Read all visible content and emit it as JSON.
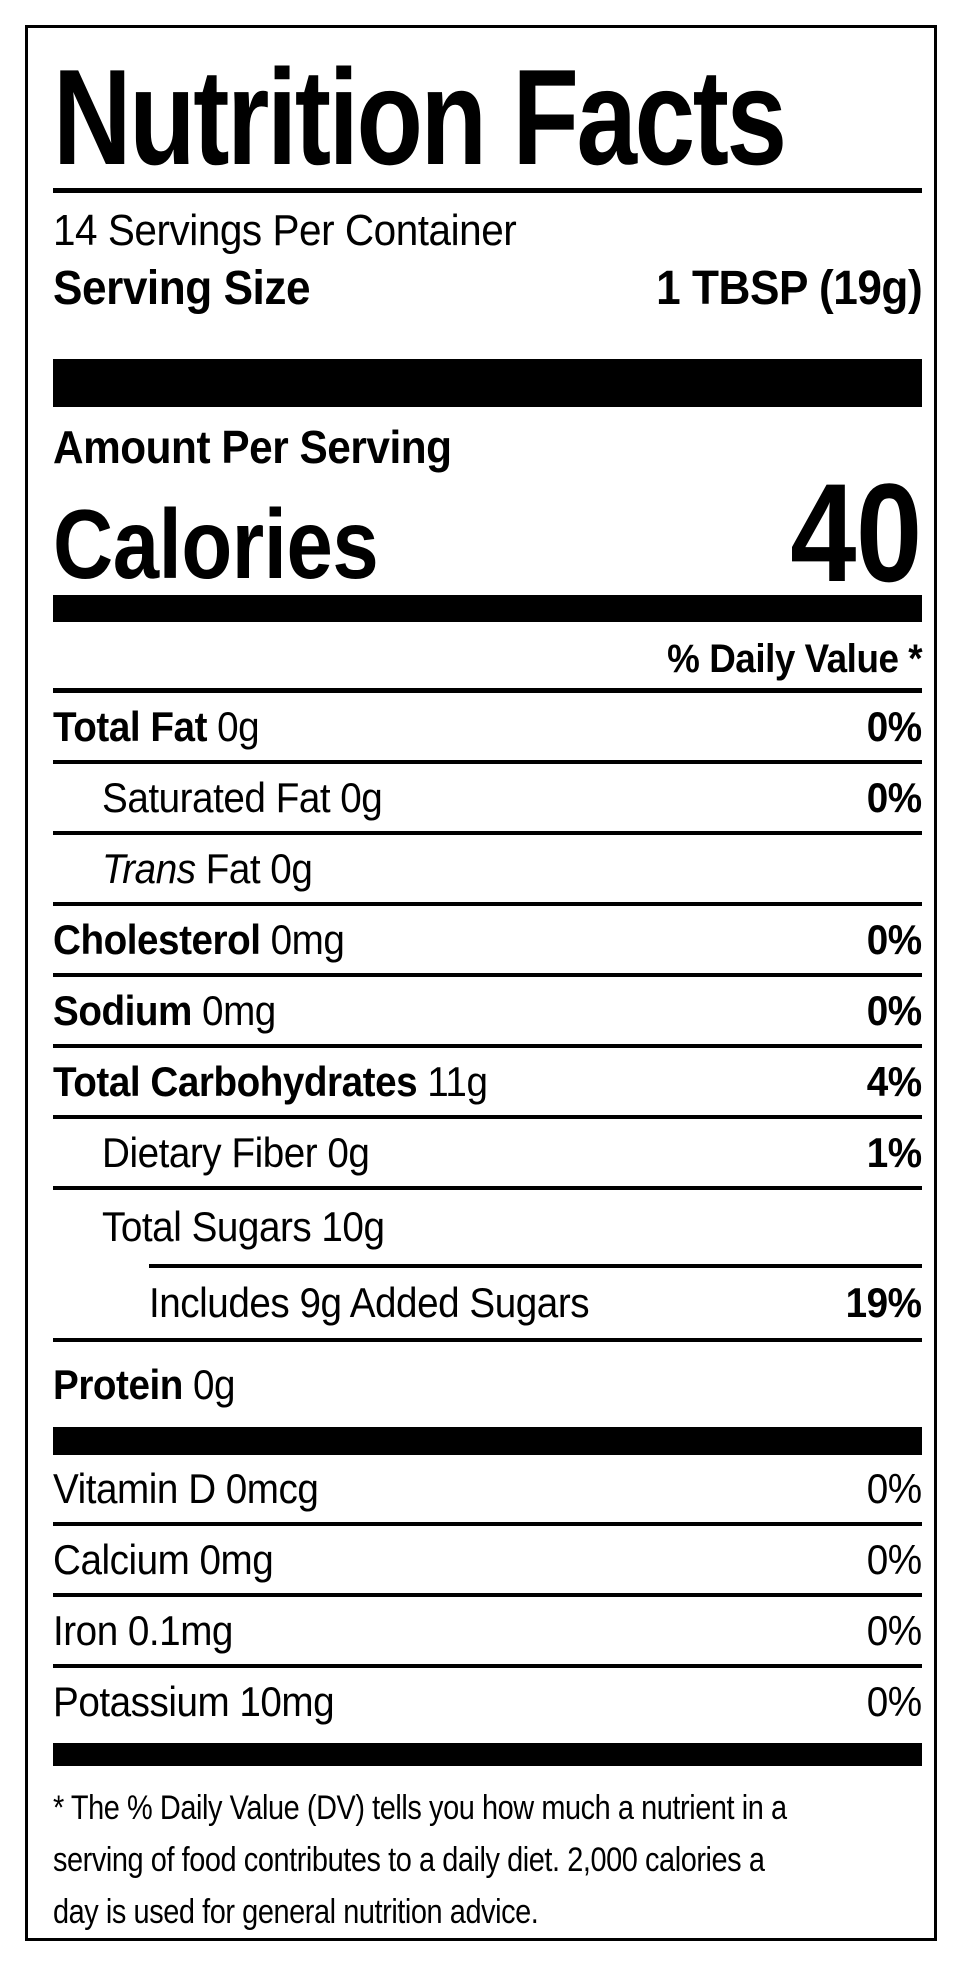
{
  "label": {
    "title": "Nutrition Facts",
    "servings_per_container": "14 Servings Per Container",
    "serving_size": {
      "label": "Serving Size",
      "value": "1 TBSP (19g)"
    },
    "amount_per_serving": "Amount Per Serving",
    "calories": {
      "label": "Calories",
      "value": "40"
    },
    "daily_value_header": "% Daily Value *",
    "nutrients": [
      {
        "name": "Total Fat",
        "amount": "0g",
        "pct": "0%"
      },
      {
        "name": "Saturated Fat",
        "amount": "0g",
        "pct": "0%"
      },
      {
        "name_italic": "Trans",
        "name": "Fat",
        "amount": "0g",
        "pct": ""
      },
      {
        "name": "Cholesterol",
        "amount": "0mg",
        "pct": "0%"
      },
      {
        "name": "Sodium",
        "amount": "0mg",
        "pct": "0%"
      },
      {
        "name": "Total Carbohydrates",
        "amount": "11g",
        "pct": "4%"
      },
      {
        "name": "Dietary Fiber",
        "amount": "0g",
        "pct": "1%"
      },
      {
        "name": "Total Sugars",
        "amount": "10g",
        "pct": ""
      },
      {
        "name": "Includes 9g Added Sugars",
        "amount": "",
        "pct": "19%"
      },
      {
        "name": "Protein",
        "amount": "0g",
        "pct": ""
      }
    ],
    "vitamins": [
      {
        "name": "Vitamin D",
        "amount": "0mcg",
        "pct": "0%"
      },
      {
        "name": "Calcium",
        "amount": "0mg",
        "pct": "0%"
      },
      {
        "name": "Iron",
        "amount": "0.1mg",
        "pct": "0%"
      },
      {
        "name": "Potassium",
        "amount": "10mg",
        "pct": "0%"
      }
    ],
    "footnote_lines": [
      "* The % Daily Value (DV) tells you how much a nutrient in a",
      "serving of food contributes to a daily diet. 2,000 calories a",
      "day is used for general nutrition advice."
    ],
    "colors": {
      "ink": "#000000",
      "background": "#ffffff"
    }
  }
}
